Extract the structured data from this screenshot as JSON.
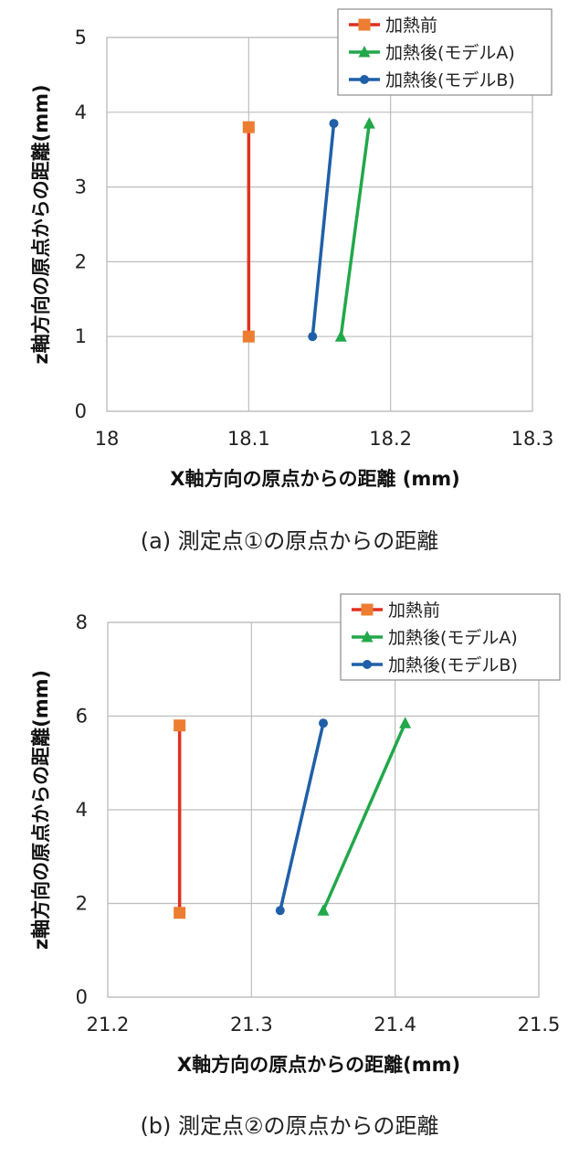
{
  "chart_data": [
    {
      "type": "line",
      "xlabel": "X軸方向の原点からの距離 (mm)",
      "ylabel": "z軸方向の原点からの距離(mm)",
      "xlim": [
        18,
        18.3
      ],
      "ylim": [
        0,
        5
      ],
      "xticks": [
        "18",
        "18.1",
        "18.2",
        "18.3"
      ],
      "yticks": [
        "0",
        "1",
        "2",
        "3",
        "4",
        "5"
      ],
      "grid": true,
      "legend_position": "top-right",
      "caption": "(a) 測定点①の原点からの距離",
      "series": [
        {
          "name": "加熱前",
          "color": "#e03020",
          "marker": "square",
          "marker_color": "#ed7d31",
          "points": [
            [
              18.1,
              1.0
            ],
            [
              18.1,
              3.8
            ]
          ]
        },
        {
          "name": "加熱後(モデルA)",
          "color": "#21a84a",
          "marker": "triangle",
          "marker_color": "#21a84a",
          "points": [
            [
              18.165,
              1.0
            ],
            [
              18.185,
              3.85
            ]
          ]
        },
        {
          "name": "加熱後(モデルB)",
          "color": "#1f5fa8",
          "marker": "circle",
          "marker_color": "#1f5fa8",
          "points": [
            [
              18.145,
              1.0
            ],
            [
              18.16,
              3.85
            ]
          ]
        }
      ]
    },
    {
      "type": "line",
      "xlabel": "X軸方向の原点からの距離(mm)",
      "ylabel": "z軸方向の原点からの距離(mm)",
      "xlim": [
        21.2,
        21.5
      ],
      "ylim": [
        0,
        8
      ],
      "xticks": [
        "21.2",
        "21.3",
        "21.4",
        "21.5"
      ],
      "yticks": [
        "0",
        "2",
        "4",
        "6",
        "8"
      ],
      "grid": true,
      "legend_position": "top-right",
      "caption": "(b) 測定点②の原点からの距離",
      "series": [
        {
          "name": "加熱前",
          "color": "#e03020",
          "marker": "square",
          "marker_color": "#ed7d31",
          "points": [
            [
              21.25,
              1.8
            ],
            [
              21.25,
              5.8
            ]
          ]
        },
        {
          "name": "加熱後(モデルA)",
          "color": "#21a84a",
          "marker": "triangle",
          "marker_color": "#21a84a",
          "points": [
            [
              21.35,
              1.85
            ],
            [
              21.407,
              5.85
            ]
          ]
        },
        {
          "name": "加熱後(モデルB)",
          "color": "#1f5fa8",
          "marker": "circle",
          "marker_color": "#1f5fa8",
          "points": [
            [
              21.32,
              1.85
            ],
            [
              21.35,
              5.85
            ]
          ]
        }
      ]
    }
  ]
}
